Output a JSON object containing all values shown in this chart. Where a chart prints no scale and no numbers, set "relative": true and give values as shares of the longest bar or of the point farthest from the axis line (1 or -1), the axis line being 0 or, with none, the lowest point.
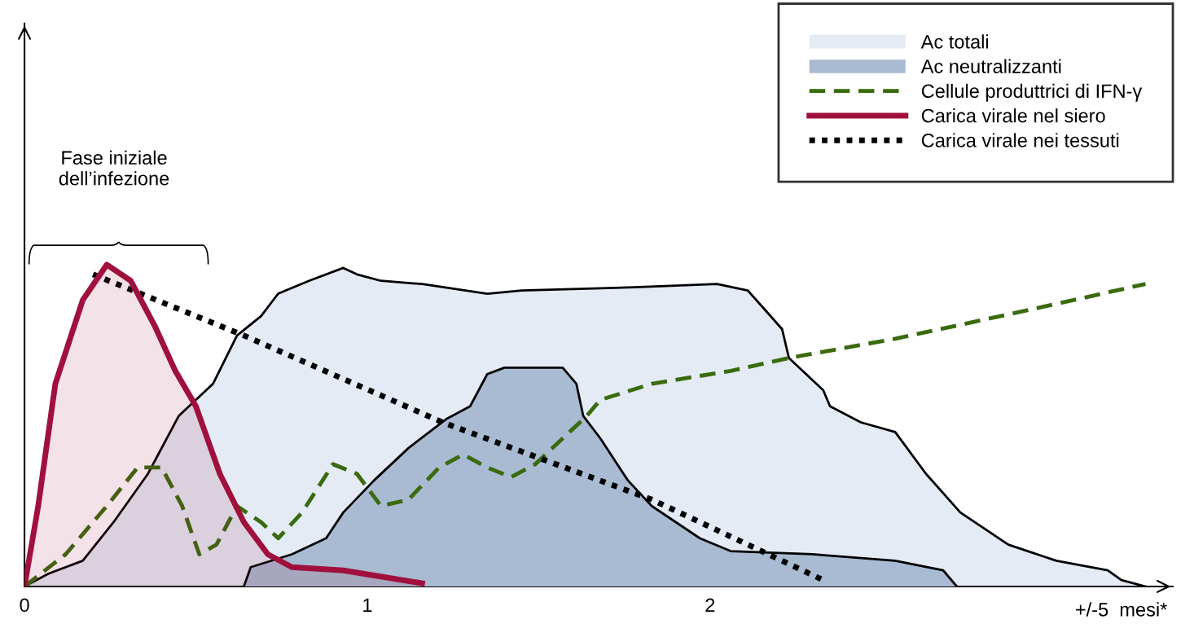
{
  "chart_data": {
    "type": "area",
    "relative": true,
    "tick_labels": "x",
    "legend": "top right",
    "grid": false,
    "xlim": [
      0,
      3.35
    ],
    "xticks": [
      0,
      1,
      2
    ],
    "xlabel": "+/-5  mesi*",
    "annotations": [
      "Fase iniziale\ndell’infezione"
    ],
    "series": [
      {
        "name": "Ac totali",
        "color": "#e4ebf5",
        "x": [
          0,
          0.07,
          0.17,
          0.26,
          0.36,
          0.45,
          0.55,
          0.62,
          0.69,
          0.74,
          0.83,
          0.93,
          0.97,
          1.04,
          1.16,
          1.35,
          1.45,
          1.78,
          2.02,
          2.11,
          2.16,
          2.21,
          2.23,
          2.28,
          2.33,
          2.35,
          2.44,
          2.54,
          2.63,
          2.73,
          2.87,
          3.01,
          3.16,
          3.2,
          3.27
        ],
        "values": [
          0,
          0.04,
          0.08,
          0.2,
          0.35,
          0.53,
          0.63,
          0.78,
          0.84,
          0.91,
          0.95,
          0.99,
          0.97,
          0.95,
          0.94,
          0.91,
          0.92,
          0.93,
          0.94,
          0.92,
          0.86,
          0.8,
          0.71,
          0.66,
          0.61,
          0.56,
          0.51,
          0.48,
          0.35,
          0.23,
          0.13,
          0.08,
          0.05,
          0.02,
          0
        ]
      },
      {
        "name": "Ac neutralizzanti",
        "color": "#a8bbd2",
        "x": [
          0.64,
          0.66,
          0.78,
          0.88,
          0.93,
          1.02,
          1.12,
          1.23,
          1.3,
          1.35,
          1.4,
          1.57,
          1.61,
          1.63,
          1.68,
          1.76,
          1.83,
          1.97,
          2.06,
          2.3,
          2.54,
          2.68,
          2.72
        ],
        "values": [
          0,
          0.06,
          0.1,
          0.15,
          0.23,
          0.33,
          0.43,
          0.52,
          0.56,
          0.66,
          0.68,
          0.68,
          0.63,
          0.53,
          0.46,
          0.33,
          0.25,
          0.15,
          0.11,
          0.1,
          0.08,
          0.05,
          0
        ]
      },
      {
        "name": "Cellule produttrici di IFN-γ",
        "type": "line",
        "line_style": "dashed",
        "color": "#3a6b0e",
        "x": [
          0,
          0.12,
          0.24,
          0.33,
          0.4,
          0.46,
          0.51,
          0.56,
          0.62,
          0.69,
          0.74,
          0.81,
          0.9,
          0.97,
          1.04,
          1.12,
          1.21,
          1.28,
          1.35,
          1.42,
          1.49,
          1.59,
          1.64,
          1.68,
          1.83,
          2.06,
          2.23,
          2.54,
          2.89,
          3.27
        ],
        "values": [
          0,
          0.1,
          0.25,
          0.37,
          0.37,
          0.25,
          0.1,
          0.13,
          0.25,
          0.2,
          0.15,
          0.23,
          0.38,
          0.35,
          0.25,
          0.27,
          0.37,
          0.41,
          0.37,
          0.34,
          0.38,
          0.48,
          0.53,
          0.58,
          0.63,
          0.67,
          0.71,
          0.77,
          0.85,
          0.94
        ]
      },
      {
        "name": "Carica virale nel siero",
        "line_style": "solid",
        "color": "#a0103c",
        "x": [
          0,
          0.04,
          0.09,
          0.17,
          0.24,
          0.31,
          0.38,
          0.44,
          0.5,
          0.57,
          0.64,
          0.71,
          0.78,
          0.93,
          1.16
        ],
        "values": [
          0,
          0.25,
          0.63,
          0.89,
          1.0,
          0.95,
          0.81,
          0.67,
          0.56,
          0.35,
          0.2,
          0.1,
          0.06,
          0.05,
          0.01
        ]
      },
      {
        "name": "Carica virale nei tessuti",
        "type": "line",
        "line_style": "dotted",
        "color": "#000000",
        "x": [
          0.2,
          0.64,
          1.22,
          1.83,
          2.33
        ],
        "values": [
          0.97,
          0.78,
          0.51,
          0.27,
          0.02
        ]
      }
    ]
  }
}
